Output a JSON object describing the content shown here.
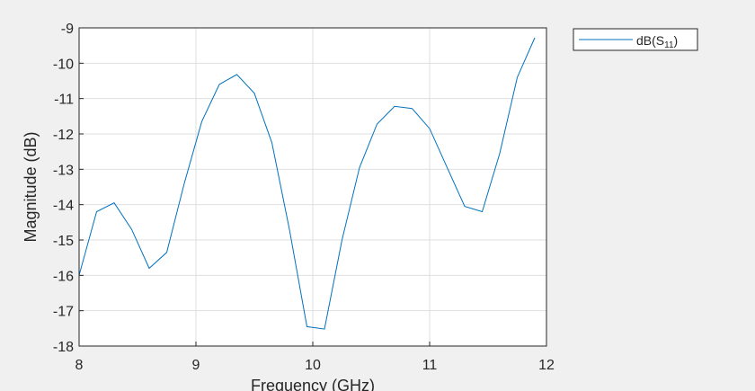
{
  "chart_data": {
    "type": "line",
    "xlabel": "Frequency (GHz)",
    "ylabel": "Magnitude (dB)",
    "xlim": [
      8,
      12
    ],
    "ylim": [
      -18,
      -9
    ],
    "xticks": [
      8,
      9,
      10,
      11,
      12
    ],
    "yticks": [
      -9,
      -10,
      -11,
      -12,
      -13,
      -14,
      -15,
      -16,
      -17,
      -18
    ],
    "xtick_labels": [
      "8",
      "9",
      "10",
      "11",
      "12"
    ],
    "ytick_labels": [
      "-9",
      "-10",
      "-11",
      "-12",
      "-13",
      "-14",
      "-15",
      "-16",
      "-17",
      "-18"
    ],
    "grid": true,
    "legend_position": "outside-top-right",
    "series": [
      {
        "name": "dB(S11)",
        "legend_main": "dB(S",
        "legend_sub": "11",
        "legend_close": ")",
        "color": "#0072bd",
        "x": [
          8.0,
          8.15,
          8.3,
          8.45,
          8.6,
          8.75,
          8.9,
          9.05,
          9.2,
          9.35,
          9.5,
          9.65,
          9.8,
          9.95,
          10.1,
          10.25,
          10.4,
          10.55,
          10.7,
          10.85,
          11.0,
          11.15,
          11.3,
          11.45,
          11.6,
          11.75,
          11.9
        ],
        "y": [
          -16.0,
          -14.2,
          -13.95,
          -14.7,
          -15.8,
          -15.35,
          -13.4,
          -11.65,
          -10.6,
          -10.32,
          -10.85,
          -12.25,
          -14.7,
          -17.45,
          -17.52,
          -15.0,
          -12.95,
          -11.72,
          -11.22,
          -11.28,
          -11.85,
          -12.95,
          -14.05,
          -14.2,
          -12.55,
          -10.4,
          -9.28
        ]
      }
    ]
  }
}
